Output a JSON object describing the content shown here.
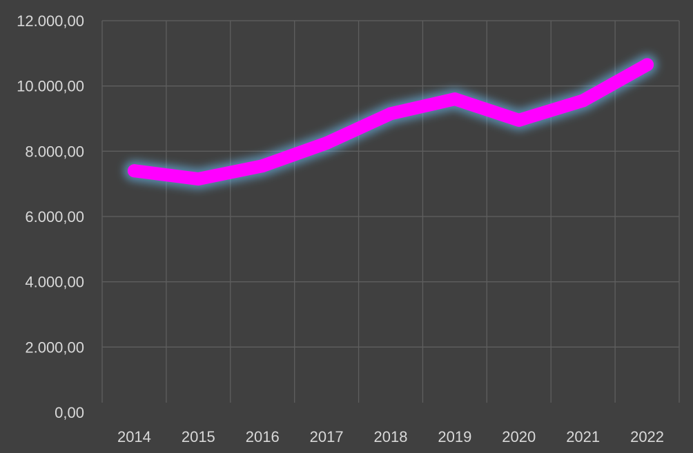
{
  "chart_data": {
    "type": "line",
    "title": "",
    "xlabel": "",
    "ylabel": "",
    "categories": [
      "2014",
      "2015",
      "2016",
      "2017",
      "2018",
      "2019",
      "2020",
      "2021",
      "2022"
    ],
    "series": [
      {
        "values": [
          7400,
          7150,
          7550,
          8250,
          9150,
          9600,
          8950,
          9550,
          10650
        ]
      }
    ],
    "ylim": [
      0,
      12000
    ],
    "yticks": [
      0,
      2000,
      4000,
      6000,
      8000,
      10000,
      12000
    ],
    "ytick_labels": [
      "0,00",
      "2.000,00",
      "4.000,00",
      "6.000,00",
      "8.000,00",
      "10.000,00",
      "12.000,00"
    ],
    "grid": true,
    "legend": "none",
    "colors": {
      "background": "#404040",
      "line": "#ff00ff",
      "glow": "#6ec6ff",
      "grid": "#5f5f5f",
      "text": "#d9d9d9"
    }
  }
}
